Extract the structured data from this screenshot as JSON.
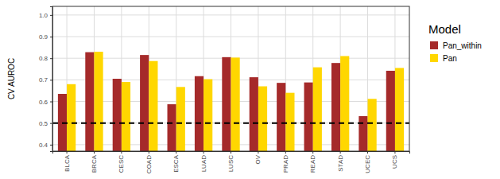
{
  "chart_data": {
    "type": "bar",
    "y_label": "CV AUROC",
    "legend_title": "Model",
    "categories": [
      "BLCA",
      "BRCA",
      "CESC",
      "COAD",
      "ESCA",
      "LUAD",
      "LUSC",
      "OV",
      "PRAD",
      "READ",
      "STAD",
      "UCEC",
      "UCS"
    ],
    "series": [
      {
        "name": "Pan_within",
        "color": "#a52a2a",
        "values": [
          0.635,
          0.828,
          0.705,
          0.815,
          0.587,
          0.717,
          0.805,
          0.712,
          0.686,
          0.688,
          0.778,
          0.532,
          0.742
        ]
      },
      {
        "name": "Pan",
        "color": "#ffd700",
        "values": [
          0.68,
          0.83,
          0.69,
          0.787,
          0.667,
          0.703,
          0.803,
          0.67,
          0.64,
          0.758,
          0.81,
          0.612,
          0.755
        ]
      }
    ],
    "ylim": [
      0.37,
      1.04
    ],
    "yticks": [
      0.4,
      0.5,
      0.6,
      0.7,
      0.8,
      0.9,
      {
        "value": 1,
        "label": "1.0"
      }
    ],
    "reference_line": 0.5,
    "grid": true,
    "legend": "right"
  }
}
